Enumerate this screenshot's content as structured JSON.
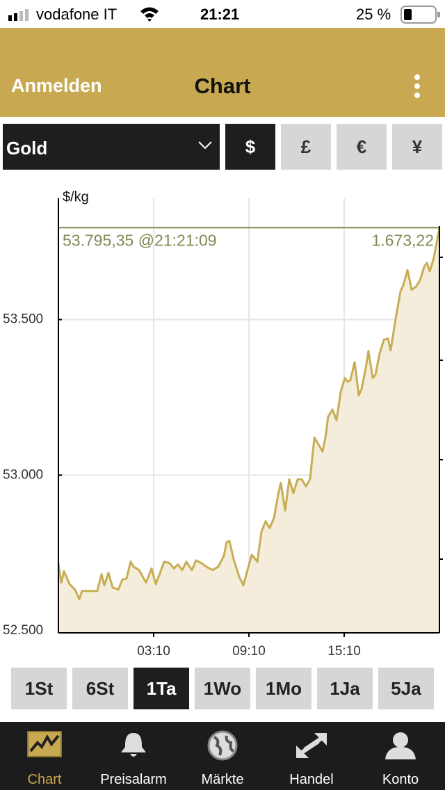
{
  "status_bar": {
    "carrier": "vodafone IT",
    "time": "21:21",
    "battery": "25 %"
  },
  "nav": {
    "left_button": "Anmelden",
    "title": "Chart"
  },
  "selector": {
    "asset": "Gold",
    "currencies": [
      "$",
      "£",
      "€",
      "¥"
    ],
    "active_currency": 0
  },
  "chart_data": {
    "type": "line",
    "y_label": "$/kg",
    "annotation": "53.795,35 @21:21:09",
    "annotation_right": "1.673,22",
    "reference_line": 53795.35,
    "line_color": "#c8ad55",
    "fill_color": "#f4eddb",
    "reference_color": "#7d8c55",
    "grid": true,
    "x": [
      0,
      0.18,
      0.35,
      0.7,
      1.05,
      1.31,
      1.49,
      1.84,
      2.45,
      2.72,
      2.89,
      3.15,
      3.42,
      3.77,
      4.03,
      4.29,
      4.55,
      4.73,
      5.08,
      5.52,
      5.87,
      6.13,
      6.39,
      6.66,
      7.01,
      7.27,
      7.53,
      7.8,
      8.06,
      8.41,
      8.67,
      9.02,
      9.37,
      9.72,
      10.07,
      10.42,
      10.6,
      10.77,
      11.04,
      11.39,
      11.65,
      11.91,
      12.18,
      12.53,
      12.79,
      13.05,
      13.31,
      13.58,
      13.84,
      14.01,
      14.28,
      14.54,
      14.8,
      15.07,
      15.33,
      15.59,
      15.85,
      16.12,
      16.38,
      16.64,
      16.82,
      16.99,
      17.26,
      17.52,
      17.78,
      18.04,
      18.22,
      18.39,
      18.66,
      18.92,
      19.1,
      19.36,
      19.53,
      19.8,
      19.97,
      20.23,
      20.5,
      20.76,
      20.93,
      21.2,
      21.55,
      21.72,
      21.99,
      22.25,
      22.51,
      22.77,
      23.04,
      23.21,
      23.39,
      23.65,
      24
    ],
    "values": [
      52717,
      52655,
      52691,
      52650,
      52632,
      52601,
      52628,
      52628,
      52628,
      52682,
      52646,
      52686,
      52639,
      52632,
      52664,
      52668,
      52722,
      52706,
      52695,
      52655,
      52700,
      52650,
      52684,
      52722,
      52717,
      52700,
      52713,
      52695,
      52722,
      52695,
      52726,
      52717,
      52704,
      52695,
      52706,
      52740,
      52785,
      52789,
      52729,
      52673,
      52646,
      52695,
      52744,
      52722,
      52818,
      52852,
      52830,
      52863,
      52937,
      52975,
      52886,
      52987,
      52942,
      52987,
      52987,
      52964,
      52987,
      53121,
      53099,
      53076,
      53121,
      53188,
      53211,
      53177,
      53267,
      53312,
      53300,
      53305,
      53363,
      53256,
      53278,
      53345,
      53399,
      53312,
      53323,
      53390,
      53435,
      53439,
      53401,
      53491,
      53592,
      53610,
      53659,
      53596,
      53605,
      53625,
      53670,
      53682,
      53655,
      53699,
      53794
    ],
    "xlim": [
      0,
      24
    ],
    "xticks": [
      {
        "value": 6,
        "label": "03:10"
      },
      {
        "value": 12,
        "label": "09:10"
      },
      {
        "value": 18,
        "label": "15:10"
      }
    ],
    "ylim": [
      52500,
      53890
    ],
    "yticks": [
      {
        "value": 52500,
        "label": "52.500"
      },
      {
        "value": 53000,
        "label": "53.000"
      },
      {
        "value": 53500,
        "label": "53.500"
      }
    ]
  },
  "ranges": {
    "buttons": [
      "1St",
      "6St",
      "1Ta",
      "1Wo",
      "1Mo",
      "1Ja",
      "5Ja"
    ],
    "active": 2
  },
  "tabs": {
    "items": [
      "Chart",
      "Preisalarm",
      "Märkte",
      "Handel",
      "Konto"
    ],
    "active": 0
  }
}
